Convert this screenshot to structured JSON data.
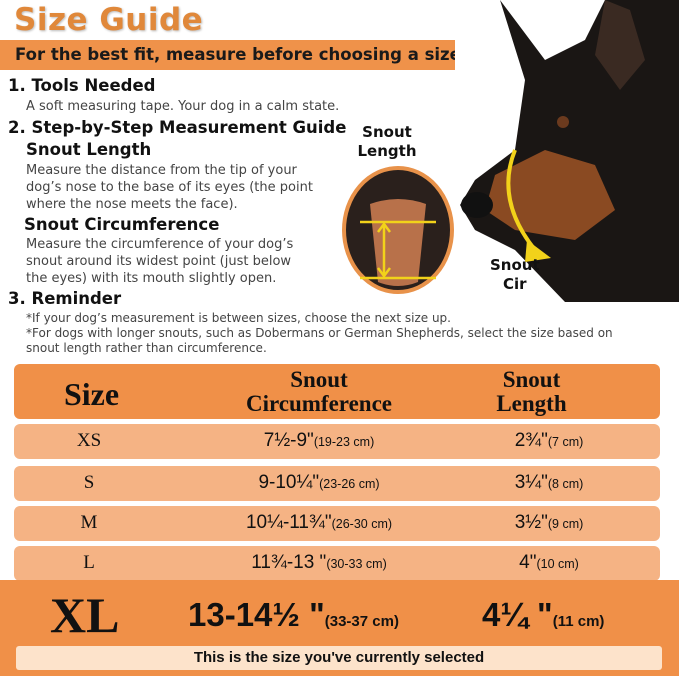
{
  "title": "Size Guide",
  "banner": "For the best fit, measure before choosing a size",
  "sections": {
    "tools_heading": "1. Tools Needed",
    "tools_text": "A soft measuring tape. Your dog in a calm state.",
    "guide_heading": "2. Step-by-Step Measurement Guide",
    "length_heading": "Snout Length",
    "length_text": [
      "Measure the distance from the tip of your",
      "dog’s nose to the base of its eyes (the point",
      "where the nose meets the face)."
    ],
    "circ_heading": "Snout Circumference",
    "circ_text": [
      "Measure the circumference of your dog’s",
      "snout around its widest point (just below",
      "the eyes) with its mouth slightly open."
    ],
    "reminder_heading": "3. Reminder",
    "reminder_text": [
      "*If your dog’s measurement is between sizes, choose the next size up.",
      "*For dogs with longer snouts, such as Dobermans or German Shepherds, select the size based on",
      "snout length rather than circumference."
    ]
  },
  "image_labels": {
    "snout_length": [
      "Snout",
      "Length"
    ],
    "snout_cir": [
      "Snout",
      "Cir"
    ]
  },
  "colors": {
    "accent": "#EF924A",
    "row": "#F5B384",
    "selected_bar": "#FDE3CB",
    "title": "#E0883A"
  },
  "table": {
    "headers": {
      "size": "Size",
      "circ": [
        "Snout",
        "Circumference"
      ],
      "length": [
        "Snout",
        "Length"
      ]
    },
    "rows": [
      {
        "size": "XS",
        "circ": "7½-9\"",
        "circ_cm": "(19-23 cm)",
        "length": "2¾\"",
        "length_cm": "(7 cm)"
      },
      {
        "size": "S",
        "circ": "9-10¼\"",
        "circ_cm": "(23-26 cm)",
        "length": "3¼\"",
        "length_cm": "(8 cm)"
      },
      {
        "size": "M",
        "circ": "10¼-11¾\"",
        "circ_cm": "(26-30 cm)",
        "length": "3½\"",
        "length_cm": "(9 cm)"
      },
      {
        "size": "L",
        "circ": "11¾-13 \"",
        "circ_cm": "(30-33 cm)",
        "length": "4\"",
        "length_cm": "(10 cm)"
      }
    ],
    "selected": {
      "size": "XL",
      "circ": "13-14½ \"",
      "circ_cm": "(33-37 cm)",
      "length": "4¼ \"",
      "length_cm": "(11 cm)",
      "note": "This is the size you've currently selected"
    }
  }
}
